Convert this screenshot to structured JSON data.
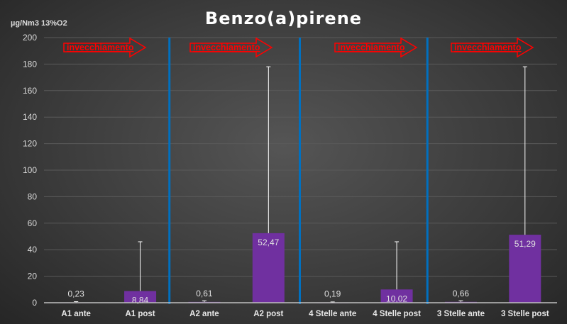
{
  "chart_data": {
    "type": "bar",
    "title": "Benzo(a)pirene",
    "ylabel": "µg/Nm3 13%O2",
    "xlabel": "",
    "ylim": [
      0,
      200
    ],
    "yticks": [
      0,
      20,
      40,
      60,
      80,
      100,
      120,
      140,
      160,
      180,
      200
    ],
    "grid": true,
    "categories": [
      "A1 ante",
      "A1 post",
      "A2 ante",
      "A2 post",
      "4 Stelle ante",
      "4 Stelle post",
      "3 Stelle ante",
      "3 Stelle post"
    ],
    "values": [
      0.23,
      8.84,
      0.61,
      52.47,
      0.19,
      10.02,
      0.66,
      51.29
    ],
    "value_labels": [
      "0,23",
      "8,84",
      "0,61",
      "52,47",
      "0,19",
      "10,02",
      "0,66",
      "51,29"
    ],
    "error_upper": [
      0.8,
      46,
      1.5,
      178,
      0.6,
      46,
      1.5,
      178
    ],
    "annotations": [
      "invecchiamento",
      "invecchiamento",
      "invecchiamento",
      "invecchiamento"
    ],
    "separators_after": [
      1,
      3,
      5
    ],
    "colors": {
      "bar": "#7030a0",
      "separator": "#0070c0",
      "arrow": "#ff0000",
      "error": "#ffffff"
    }
  }
}
